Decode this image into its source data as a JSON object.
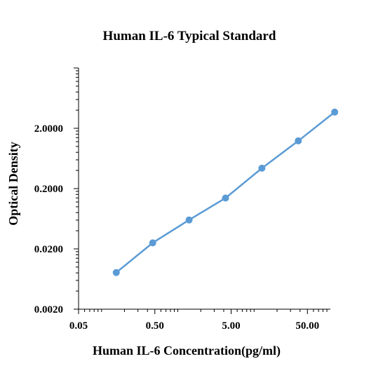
{
  "chart_data": {
    "type": "line",
    "title": "Human  IL-6 Typical Standard",
    "xlabel": "Human  IL-6 Concentration(pg/ml)",
    "ylabel": "Optical Density",
    "x_scale": "log",
    "y_scale": "log",
    "xlim": [
      0.05,
      100
    ],
    "ylim": [
      0.002,
      20
    ],
    "x_ticks": [
      "0.05",
      "0.50",
      "5.00",
      "50.00"
    ],
    "y_ticks": [
      "0.0020",
      "0.0200",
      "0.2000",
      "2.0000"
    ],
    "grid": false,
    "legend": "none",
    "series": [
      {
        "color": "#5b9bd5",
        "x": [
          0.156,
          0.4688,
          1.4062,
          4.2187,
          12.6562,
          37.9688,
          113.9063
        ],
        "y": [
          0.0081,
          0.0252,
          0.0604,
          0.1394,
          0.4363,
          1.2374,
          3.7113
        ]
      }
    ]
  }
}
